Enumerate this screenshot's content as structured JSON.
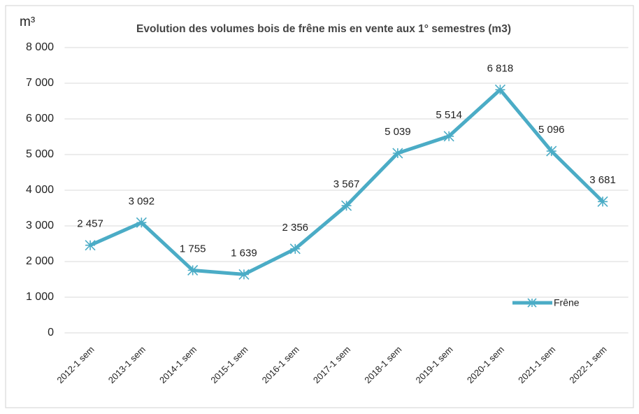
{
  "chart_data": {
    "type": "line",
    "title": "Evolution des volumes bois de frêne mis en vente aux 1° semestres (m3)",
    "y_label": "m³",
    "categories": [
      "2012-1 sem",
      "2013-1 sem",
      "2014-1 sem",
      "2015-1 sem",
      "2016-1 sem",
      "2017-1 sem",
      "2018-1 sem",
      "2019-1 sem",
      "2020-1 sem",
      "2021-1 sem",
      "2022-1 sem"
    ],
    "series": [
      {
        "name": "Frêne",
        "color": "#4bacc6",
        "values": [
          2457,
          3092,
          1755,
          1639,
          2356,
          3567,
          5039,
          5514,
          6818,
          5096,
          3681
        ],
        "value_labels": [
          "2 457",
          "3 092",
          "1 755",
          "1 639",
          "2 356",
          "3 567",
          "5 039",
          "5 514",
          "6 818",
          "5 096",
          "3 681"
        ]
      }
    ],
    "ylim": [
      0,
      8000
    ],
    "yticks": [
      0,
      {
        "value": 1000,
        "label": "1 000"
      },
      {
        "value": 2000,
        "label": "2 000"
      },
      {
        "value": 3000,
        "label": "3 000"
      },
      {
        "value": 4000,
        "label": "4 000"
      },
      {
        "value": 5000,
        "label": "5 000"
      },
      {
        "value": 6000,
        "label": "6 000"
      },
      {
        "value": 7000,
        "label": "7 000"
      },
      {
        "value": 8000,
        "label": "8 000"
      }
    ],
    "grid": true,
    "legend": "right"
  }
}
